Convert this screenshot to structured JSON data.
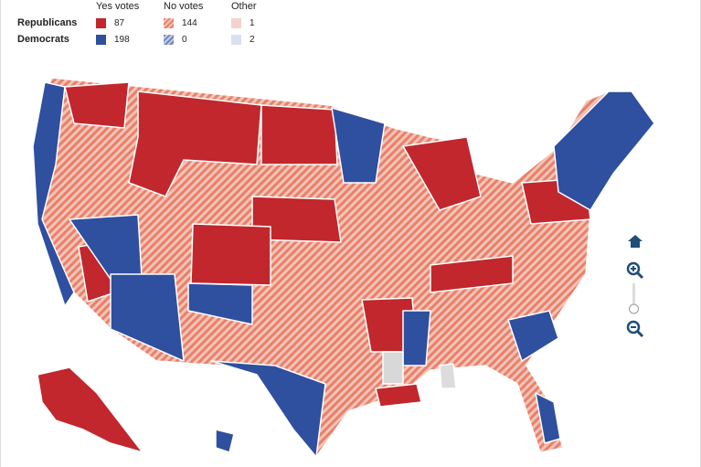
{
  "legend": {
    "columns": [
      "Yes votes",
      "No votes",
      "Other"
    ],
    "rows": [
      {
        "label": "Republicans",
        "counts": [
          87,
          144,
          1
        ]
      },
      {
        "label": "Democrats",
        "counts": [
          198,
          0,
          2
        ]
      }
    ]
  }
}
